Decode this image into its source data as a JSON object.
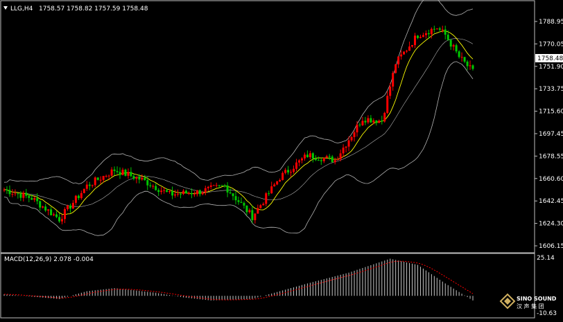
{
  "header": {
    "symbol": "LLG,H4",
    "ohlc": "1758.57 1758.82 1757.59 1758.48"
  },
  "price_axis": {
    "ticks": [
      "1788.95",
      "1770.05",
      "1751.90",
      "1733.75",
      "1715.60",
      "1697.45",
      "1678.55",
      "1660.60",
      "1642.45",
      "1624.30",
      "1606.15"
    ],
    "current_price": "1758.48"
  },
  "macd": {
    "label": "MACD(12,26,9) 2.078 -0.004",
    "axis_top": "25.14",
    "axis_bottom": "-10.63"
  },
  "watermark": {
    "name": "SINO SOUND",
    "cn": "汉 声 集 团"
  },
  "colors": {
    "background": "#000000",
    "bull_candle": "#ff0000",
    "bear_candle": "#00c800",
    "moving_average": "#ffff00",
    "bollinger": "#b4b4b4",
    "macd_hist": "#c8c8c8",
    "macd_signal": "#ff0000",
    "axis_text": "#ffffff"
  },
  "chart_data": [
    {
      "type": "candlestick",
      "title": "LLG,H4",
      "ylim": [
        1606.15,
        1795.0
      ],
      "overlays": [
        "moving average (yellow)",
        "Bollinger bands (gray)"
      ],
      "close_anchors": {
        "x": [
          0,
          10,
          20,
          30,
          40,
          50,
          60,
          70,
          80,
          90,
          100,
          110,
          120,
          130,
          137,
          142,
          150,
          157,
          160,
          165,
          170
        ],
        "close": [
          1652,
          1645,
          1628,
          1655,
          1668,
          1660,
          1648,
          1650,
          1655,
          1630,
          1662,
          1680,
          1676,
          1710,
          1708,
          1755,
          1778,
          1784,
          1778,
          1760,
          1748
        ]
      }
    },
    {
      "type": "bar",
      "title": "MACD(12,26,9) 2.078 -0.004",
      "ylim": [
        -10.63,
        25.14
      ],
      "anchors": {
        "x": [
          0,
          20,
          30,
          40,
          55,
          65,
          75,
          90,
          100,
          110,
          125,
          140,
          150,
          160,
          170
        ],
        "value": [
          1,
          -2,
          3,
          5,
          2,
          -1,
          -3,
          -2,
          3,
          8,
          15,
          24,
          20,
          8,
          -3
        ]
      }
    }
  ]
}
